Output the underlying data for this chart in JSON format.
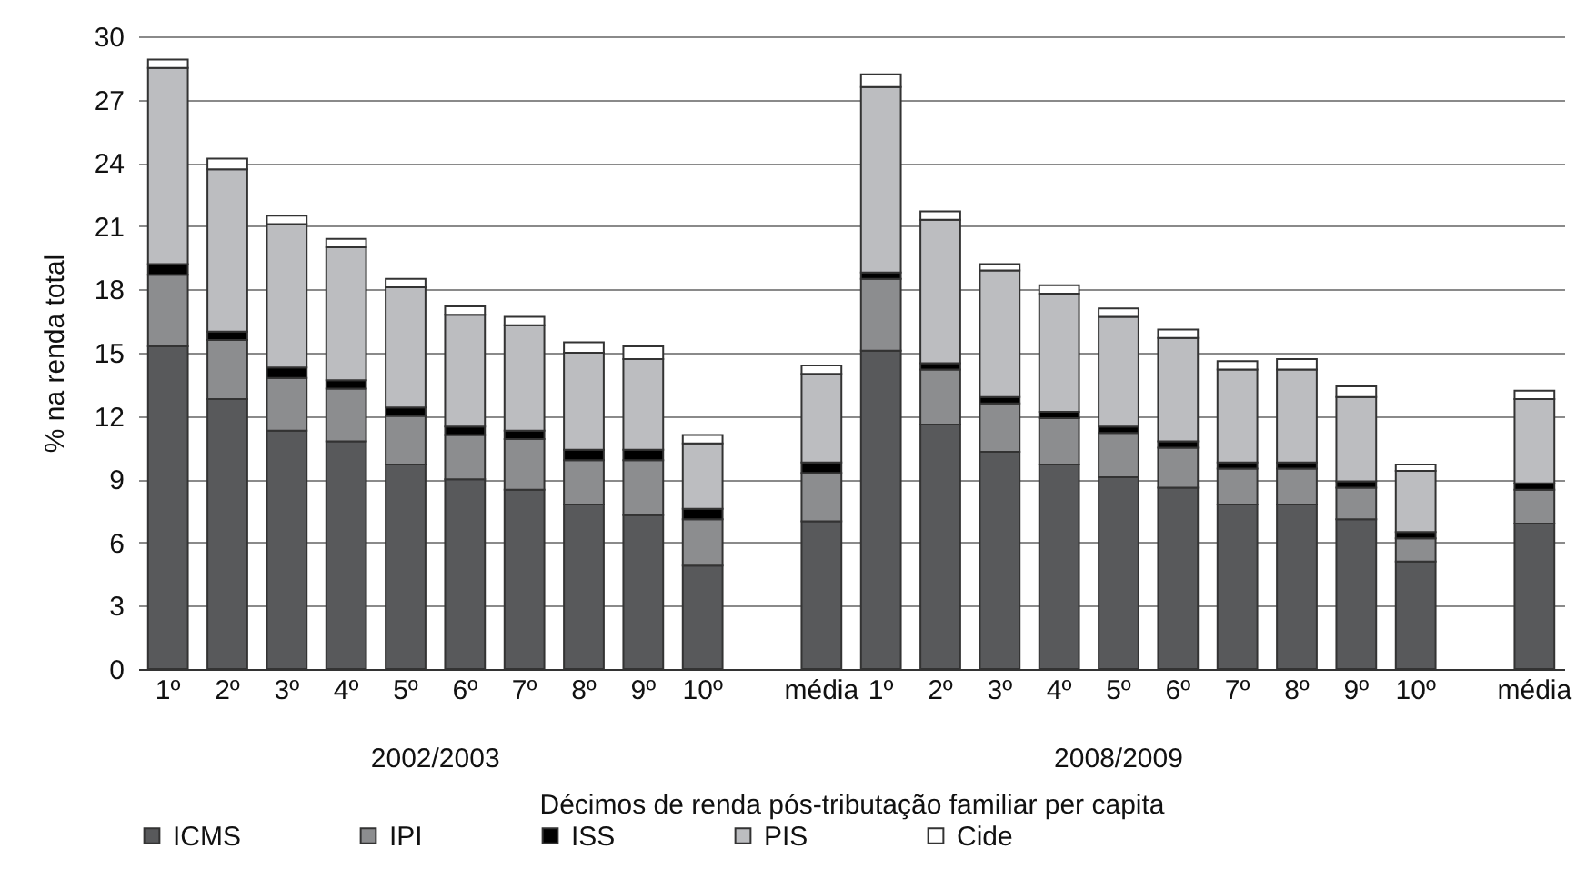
{
  "chart_data": {
    "type": "bar",
    "stacked": true,
    "ylabel": "% na renda total",
    "xlabel": "Décimos de renda pós-tributação familiar per capita",
    "annotations": [
      "2002/2003",
      "2008/2009"
    ],
    "categories": [
      "1º",
      "2º",
      "3º",
      "4º",
      "5º",
      "6º",
      "7º",
      "8º",
      "9º",
      "10º",
      null,
      "média",
      "1º",
      "2º",
      "3º",
      "4º",
      "5º",
      "6º",
      "7º",
      "8º",
      "9º",
      "10º",
      null,
      "média"
    ],
    "series": [
      {
        "name": "ICMS",
        "color": "#58595b",
        "values": [
          15.3,
          12.8,
          11.3,
          10.8,
          9.7,
          9.0,
          8.5,
          7.8,
          7.3,
          4.9,
          null,
          7.0,
          15.1,
          11.6,
          10.3,
          9.7,
          9.1,
          8.6,
          7.8,
          7.8,
          7.1,
          5.1,
          null,
          6.9
        ]
      },
      {
        "name": "IPI",
        "color": "#8c8d8f",
        "values": [
          3.4,
          2.8,
          2.5,
          2.5,
          2.3,
          2.1,
          2.4,
          2.1,
          2.6,
          2.2,
          null,
          2.3,
          3.4,
          2.6,
          2.3,
          2.2,
          2.1,
          1.9,
          1.7,
          1.7,
          1.5,
          1.1,
          null,
          1.6
        ]
      },
      {
        "name": "ISS",
        "color": "#000000",
        "values": [
          0.5,
          0.4,
          0.5,
          0.4,
          0.4,
          0.4,
          0.4,
          0.5,
          0.5,
          0.5,
          null,
          0.5,
          0.3,
          0.3,
          0.3,
          0.3,
          0.3,
          0.3,
          0.3,
          0.3,
          0.3,
          0.3,
          null,
          0.3
        ]
      },
      {
        "name": "PIS",
        "color": "#bcbdc0",
        "values": [
          9.3,
          7.7,
          6.8,
          6.3,
          5.7,
          5.3,
          5.0,
          4.6,
          4.3,
          3.1,
          null,
          4.2,
          8.8,
          6.8,
          6.0,
          5.6,
          5.2,
          4.9,
          4.4,
          4.4,
          4.0,
          2.9,
          null,
          4.0
        ]
      },
      {
        "name": "Cide",
        "color": "#ffffff",
        "values": [
          0.4,
          0.5,
          0.4,
          0.4,
          0.4,
          0.4,
          0.4,
          0.5,
          0.6,
          0.4,
          null,
          0.4,
          0.6,
          0.4,
          0.3,
          0.4,
          0.4,
          0.4,
          0.4,
          0.5,
          0.5,
          0.3,
          null,
          0.4
        ]
      }
    ],
    "ylim": [
      0,
      30
    ],
    "yticks": [
      0,
      3,
      6,
      9,
      12,
      15,
      18,
      21,
      24,
      27,
      30
    ],
    "grid": "y",
    "legend": "bottom"
  }
}
